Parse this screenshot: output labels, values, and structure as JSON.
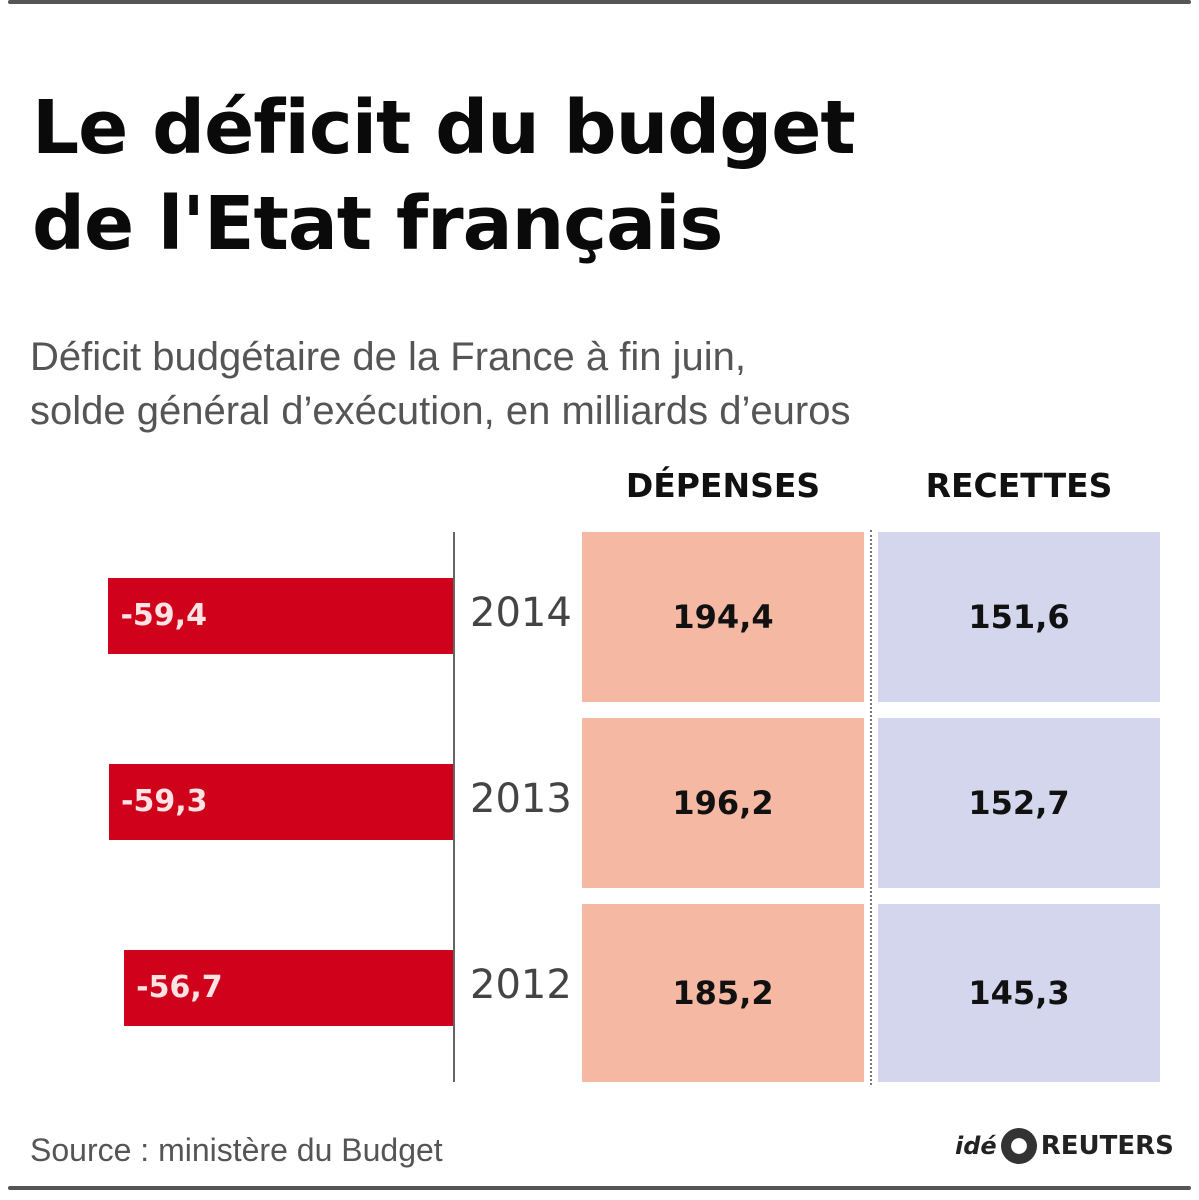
{
  "title_line1": "Le déficit du budget",
  "title_line2": "de l'Etat français",
  "subtitle_line1": "Déficit budgétaire de la France à fin juin,",
  "subtitle_line2": "solde général d’exécution, en milliards d’euros",
  "colors": {
    "deficit_bar": "#d0021b",
    "depenses": "#f5b8a2",
    "recettes": "#d3d6ec"
  },
  "chart_data": {
    "type": "bar",
    "title": "Le déficit du budget de l'Etat français",
    "subtitle": "Déficit budgétaire de la France à fin juin, solde général d’exécution, en milliards d’euros",
    "categories": [
      "2014",
      "2013",
      "2012"
    ],
    "series": [
      {
        "name": "Solde",
        "values": [
          -59.4,
          -59.3,
          -56.7
        ],
        "labels": [
          "-59,4",
          "-59,3",
          "-56,7"
        ]
      }
    ],
    "xlim": [
      -60,
      0
    ],
    "orientation": "horizontal",
    "table": {
      "columns": [
        "DÉPENSES",
        "RECETTES"
      ],
      "rows": [
        {
          "year": "2014",
          "depenses": "194,4",
          "recettes": "151,6"
        },
        {
          "year": "2013",
          "depenses": "196,2",
          "recettes": "152,7"
        },
        {
          "year": "2012",
          "depenses": "185,2",
          "recettes": "145,3"
        }
      ]
    }
  },
  "footer": {
    "source": "Source : ministère du Budget",
    "brand_prefix": "idé",
    "brand_name": "REUTERS"
  }
}
